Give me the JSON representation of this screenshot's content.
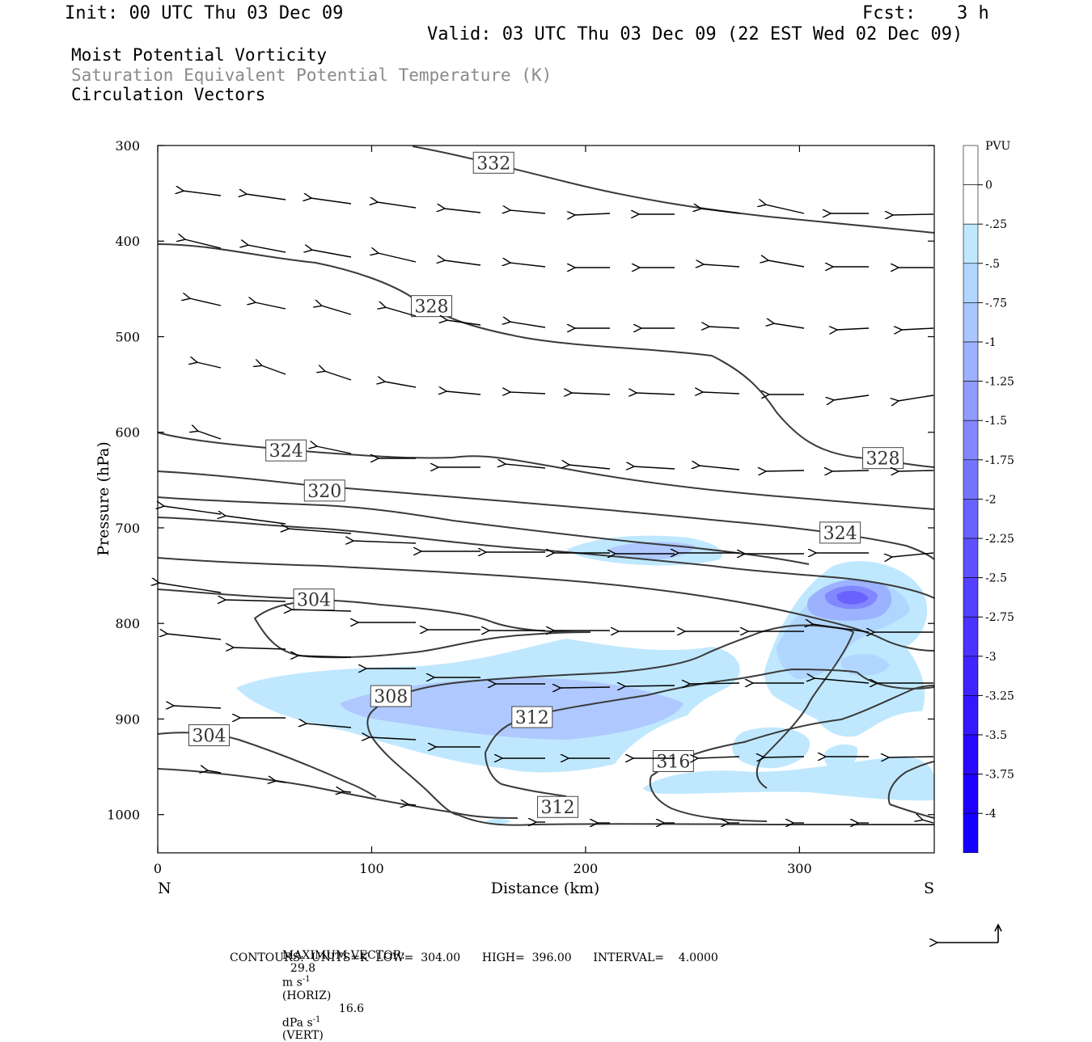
{
  "header": {
    "init": "Init: 00 UTC Thu 03 Dec 09",
    "fcst_label": "Fcst:",
    "fcst_value": "3 h",
    "valid": "Valid: 03 UTC Thu 03 Dec 09 (22 EST Wed 02 Dec 09)"
  },
  "fields": {
    "line1": "Moist Potential Vorticity",
    "line2": "Saturation Equivalent Potential Temperature (K)",
    "line3": "Circulation Vectors"
  },
  "footer": {
    "max_vector_label": "MAXIMUM VECTOR:",
    "horiz_value": "29.8",
    "horiz_units": "m s",
    "horiz_exp": "-1",
    "horiz_tag": "(HORIZ)",
    "vert_value": "16.6",
    "vert_units": "dPa s",
    "vert_exp": "-1",
    "vert_tag": "(VERT)",
    "contours": "CONTOURS:  UNITS=K  LOW=  304.00      HIGH=  396.00      INTERVAL=    4.0000"
  },
  "colors": {
    "contour": "#3a3a3a",
    "pv_shades": [
      "#ffffff",
      "#ffffff",
      "#bfe8ff",
      "#b0d6ff",
      "#a8c6ff",
      "#9cb2ff",
      "#8e9cff",
      "#8287ff",
      "#7574ff",
      "#6a62ff",
      "#5f50ff",
      "#5440ff",
      "#4a32ff",
      "#3f25ff",
      "#3418ff",
      "#290aff",
      "#1e00ff",
      "#1400ff"
    ]
  },
  "chart_data": {
    "type": "cross-section",
    "xlabel": "Distance (km)",
    "ylabel": "Pressure (hPa)",
    "xlim": [
      0,
      363
    ],
    "ylim": [
      1040,
      300
    ],
    "x_ticks": [
      "0",
      "100",
      "200",
      "300"
    ],
    "y_ticks": [
      "300",
      "400",
      "500",
      "600",
      "700",
      "800",
      "900",
      "1000"
    ],
    "x_end_labels": {
      "left": "N",
      "right": "S"
    },
    "grid": false,
    "colorbar": {
      "title": "PVU",
      "labels": [
        "0",
        "-.25",
        "-.5",
        "-.75",
        "-1",
        "-1.25",
        "-1.5",
        "-1.75",
        "-2",
        "-2.25",
        "-2.5",
        "-2.75",
        "-3",
        "-3.25",
        "-3.5",
        "-3.75",
        "-4"
      ]
    },
    "contour_labels": [
      {
        "text": "332",
        "x": 157,
        "p": 318
      },
      {
        "text": "328",
        "x": 128,
        "p": 468
      },
      {
        "text": "328",
        "x": 339,
        "p": 627
      },
      {
        "text": "324",
        "x": 60,
        "p": 619
      },
      {
        "text": "324",
        "x": 319,
        "p": 705
      },
      {
        "text": "320",
        "x": 78,
        "p": 661
      },
      {
        "text": "304",
        "x": 73,
        "p": 775
      },
      {
        "text": "304",
        "x": 24,
        "p": 917
      },
      {
        "text": "308",
        "x": 109,
        "p": 876
      },
      {
        "text": "312",
        "x": 175,
        "p": 898
      },
      {
        "text": "312",
        "x": 187,
        "p": 992
      },
      {
        "text": "316",
        "x": 241,
        "p": 944
      }
    ]
  }
}
